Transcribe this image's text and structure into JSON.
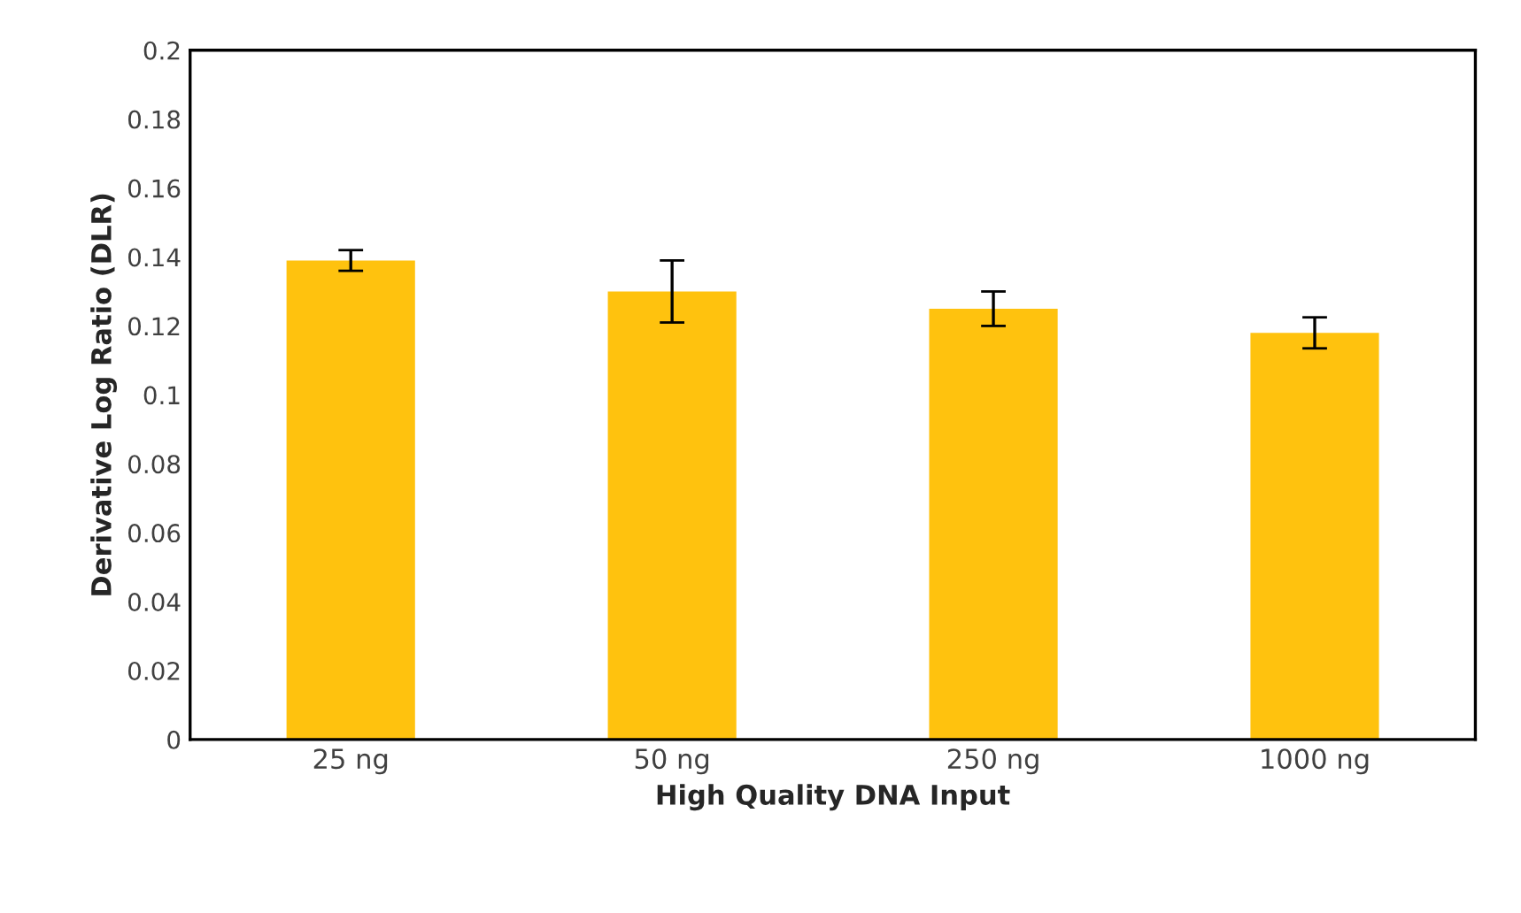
{
  "chart_data": {
    "type": "bar",
    "xlabel": "High Quality DNA Input",
    "ylabel": "Derivative Log Ratio (DLR)",
    "categories": [
      "25 ng",
      "50 ng",
      "250 ng",
      "1000 ng"
    ],
    "values": [
      0.139,
      0.13,
      0.125,
      0.118
    ],
    "errors": [
      0.003,
      0.009,
      0.005,
      0.0045
    ],
    "color": "#ffc20e",
    "ylim": [
      0,
      0.2
    ],
    "yticks": [
      0,
      0.02,
      0.04,
      0.06,
      0.08,
      0.1,
      0.12,
      0.14,
      0.16,
      0.18,
      0.2
    ],
    "grid": false,
    "legend": false
  }
}
